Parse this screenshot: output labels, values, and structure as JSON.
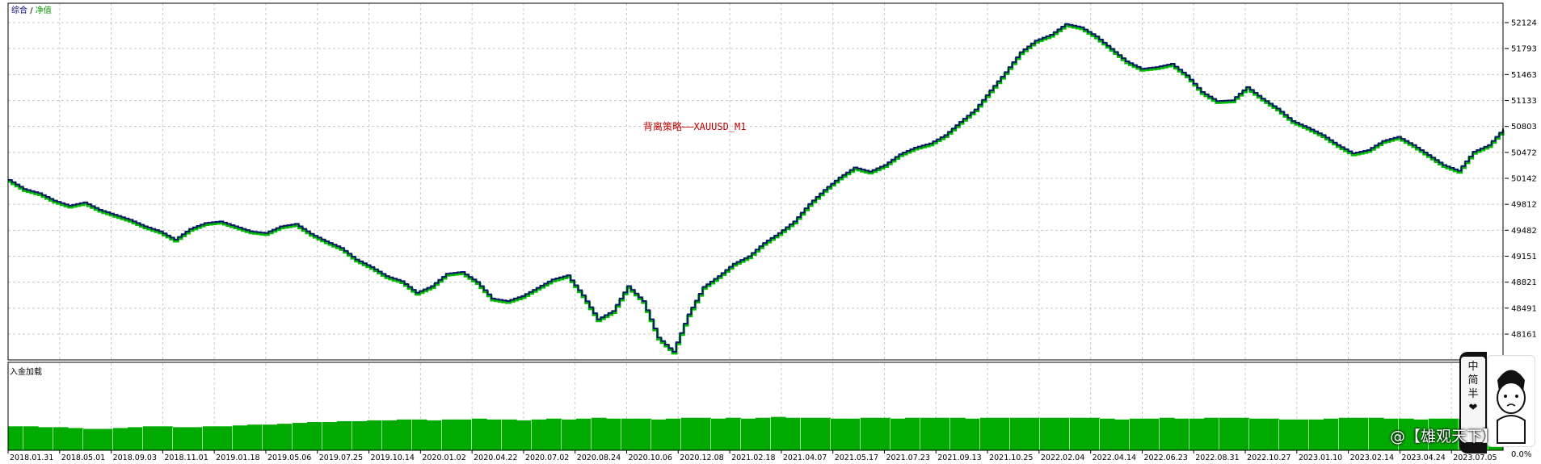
{
  "header": {
    "left_label": "综合",
    "separator": "/",
    "right_label": "净值"
  },
  "subchart": {
    "label": "入金加载",
    "pct_label": "0.0%"
  },
  "watermark": {
    "text": "@【雄观天下】"
  },
  "side_widget": {
    "chars": [
      "中",
      "简",
      "半"
    ],
    "heart": "❤"
  },
  "colors": {
    "line_main": "#0a1a66",
    "line_accent": "#00bb00",
    "grid": "#c8c8c8",
    "bar_fill": "#00aa00",
    "title": "#c00000"
  },
  "chart_data": {
    "type": "line",
    "title": "背离策略——XAUUSD_M1",
    "x_tick_labels": [
      "2018.01.31",
      "2018.05.01",
      "2018.09.03",
      "2018.11.01",
      "2019.01.18",
      "2019.05.06",
      "2019.07.25",
      "2019.10.14",
      "2020.01.02",
      "2020.04.22",
      "2020.07.02",
      "2020.08.24",
      "2020.10.06",
      "2020.12.08",
      "2021.02.18",
      "2021.04.07",
      "2021.05.17",
      "2021.07.23",
      "2021.09.13",
      "2021.10.25",
      "2022.02.04",
      "2022.04.14",
      "2022.06.23",
      "2022.08.31",
      "2022.10.27",
      "2023.01.10",
      "2023.02.14",
      "2023.04.24",
      "2023.07.05"
    ],
    "y_tick_labels": [
      "52124",
      "51793",
      "51463",
      "51133",
      "50803",
      "50472",
      "50142",
      "49812",
      "49482",
      "49151",
      "48821",
      "48491",
      "48161"
    ],
    "ylim": [
      47950,
      52250
    ],
    "series": [
      {
        "values": [
          50120,
          50010,
          49960,
          49870,
          49810,
          49850,
          49760,
          49700,
          49640,
          49560,
          49500,
          49400,
          49530,
          49600,
          49620,
          49560,
          49500,
          49480,
          49560,
          49590,
          49470,
          49380,
          49300,
          49160,
          49070,
          48960,
          48900,
          48760,
          48840,
          48990,
          49010,
          48890,
          48690,
          48660,
          48720,
          48820,
          48920,
          48970,
          48730,
          48440,
          48540,
          48840,
          48660,
          48220,
          48050,
          48500,
          48830,
          48960,
          49110,
          49200,
          49360,
          49480,
          49620,
          49830,
          50000,
          50150,
          50270,
          50220,
          50300,
          50430,
          50510,
          50560,
          50660,
          50820,
          50970,
          51200,
          51420,
          51660,
          51800,
          51870,
          52000,
          51960,
          51850,
          51700,
          51550,
          51460,
          51480,
          51520,
          51380,
          51180,
          51070,
          51080,
          51240,
          51100,
          50980,
          50830,
          50750,
          50660,
          50540,
          50440,
          50480,
          50590,
          50640,
          50540,
          50420,
          50300,
          50230,
          50460,
          50540,
          50740
        ]
      }
    ],
    "sub_series": {
      "values": [
        0.28,
        0.28,
        0.27,
        0.27,
        0.26,
        0.25,
        0.25,
        0.26,
        0.27,
        0.28,
        0.28,
        0.27,
        0.27,
        0.28,
        0.28,
        0.29,
        0.3,
        0.3,
        0.31,
        0.32,
        0.33,
        0.33,
        0.34,
        0.34,
        0.35,
        0.35,
        0.36,
        0.36,
        0.35,
        0.36,
        0.36,
        0.37,
        0.36,
        0.36,
        0.35,
        0.36,
        0.37,
        0.36,
        0.37,
        0.38,
        0.37,
        0.37,
        0.37,
        0.36,
        0.37,
        0.38,
        0.38,
        0.37,
        0.38,
        0.37,
        0.38,
        0.39,
        0.38,
        0.38,
        0.38,
        0.37,
        0.37,
        0.38,
        0.38,
        0.37,
        0.38,
        0.38,
        0.38,
        0.38,
        0.37,
        0.38,
        0.38,
        0.38,
        0.38,
        0.38,
        0.38,
        0.38,
        0.38,
        0.37,
        0.36,
        0.37,
        0.37,
        0.38,
        0.37,
        0.37,
        0.38,
        0.38,
        0.38,
        0.37,
        0.37,
        0.36,
        0.36,
        0.36,
        0.37,
        0.38,
        0.38,
        0.38,
        0.37,
        0.37,
        0.36,
        0.37,
        0.37,
        0.37,
        0.36,
        0.36
      ]
    },
    "grid": true
  }
}
